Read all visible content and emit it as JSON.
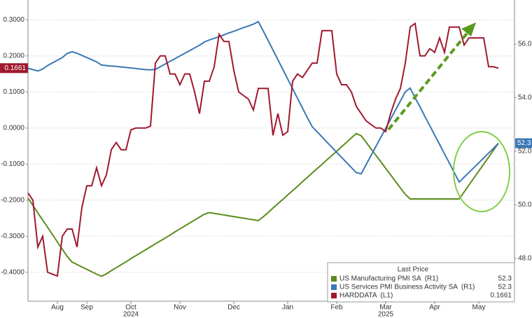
{
  "chart_data": {
    "type": "line",
    "categories": [
      null,
      null,
      null,
      null,
      null,
      null,
      "Aug",
      null,
      null,
      null,
      null,
      null,
      "Sep",
      null,
      null,
      null,
      null,
      null,
      null,
      null,
      null,
      "Oct",
      null,
      null,
      null,
      null,
      null,
      null,
      null,
      null,
      null,
      "Nov",
      null,
      null,
      null,
      null,
      null,
      null,
      null,
      null,
      null,
      null,
      "Dec",
      null,
      null,
      null,
      null,
      null,
      null,
      null,
      null,
      null,
      null,
      "Jan",
      null,
      null,
      null,
      null,
      null,
      null,
      null,
      null,
      null,
      "Feb",
      null,
      null,
      null,
      null,
      null,
      null,
      null,
      null,
      null,
      "Mar",
      null,
      null,
      null,
      null,
      null,
      null,
      null,
      null,
      null,
      "Apr",
      null,
      null,
      null,
      null,
      null,
      null,
      null,
      null,
      "May",
      null,
      null,
      null,
      null
    ],
    "year_labels": [
      "2024",
      "2025"
    ],
    "series": [
      {
        "name": "US Manufacturing PMI SA  (R1)",
        "color": "#5b8c1d",
        "axis": "y2",
        "values": [
          50.25,
          49.98,
          49.7,
          49.43,
          49.16,
          48.89,
          48.61,
          48.34,
          48.07,
          47.86,
          47.77,
          47.68,
          47.59,
          47.5,
          47.41,
          47.33,
          47.42,
          47.54,
          47.65,
          47.76,
          47.87,
          47.99,
          48.1,
          48.21,
          48.32,
          48.43,
          48.54,
          48.65,
          48.76,
          48.87,
          48.99,
          49.1,
          49.21,
          49.32,
          49.43,
          49.54,
          49.65,
          49.71,
          49.68,
          49.65,
          49.62,
          49.59,
          49.56,
          49.53,
          49.5,
          49.47,
          49.44,
          49.41,
          49.55,
          49.71,
          49.88,
          50.04,
          50.2,
          50.37,
          50.53,
          50.69,
          50.86,
          51.02,
          51.19,
          51.35,
          51.51,
          51.68,
          51.84,
          52.0,
          52.17,
          52.33,
          52.5,
          52.66,
          52.58,
          52.34,
          52.09,
          51.85,
          51.61,
          51.36,
          51.12,
          50.87,
          50.63,
          50.39,
          50.22,
          50.22,
          50.22,
          50.22,
          50.22,
          50.22,
          50.22,
          50.22,
          50.22,
          50.22,
          50.22,
          50.48,
          50.74,
          51.0,
          51.26,
          51.52,
          51.78,
          52.04,
          52.3
        ]
      },
      {
        "name": "US Services PMI Business Activity SA  (R1)",
        "color": "#3a78b5",
        "axis": "y2",
        "values": [
          55.1,
          55.05,
          55.0,
          55.07,
          55.2,
          55.3,
          55.4,
          55.5,
          55.65,
          55.72,
          55.66,
          55.58,
          55.5,
          55.42,
          55.34,
          55.22,
          55.2,
          55.18,
          55.17,
          55.15,
          55.13,
          55.11,
          55.09,
          55.07,
          55.05,
          55.04,
          55.06,
          55.16,
          55.26,
          55.36,
          55.46,
          55.56,
          55.66,
          55.76,
          55.86,
          55.96,
          56.08,
          56.16,
          56.22,
          56.28,
          56.35,
          56.42,
          56.48,
          56.55,
          56.62,
          56.68,
          56.75,
          56.84,
          56.5,
          56.14,
          55.78,
          55.42,
          55.06,
          54.7,
          54.34,
          53.98,
          53.62,
          53.26,
          52.92,
          52.73,
          52.54,
          52.34,
          52.15,
          51.96,
          51.77,
          51.58,
          51.39,
          51.2,
          51.16,
          51.5,
          51.84,
          52.18,
          52.52,
          52.86,
          53.2,
          53.54,
          53.88,
          54.22,
          54.36,
          54.0,
          53.66,
          53.3,
          52.96,
          52.6,
          52.26,
          51.9,
          51.56,
          51.2,
          50.85,
          51.03,
          51.21,
          51.39,
          51.57,
          51.75,
          51.93,
          52.11,
          52.3
        ]
      },
      {
        "name": "HARDDATA  (L1)",
        "color": "#a0192e",
        "values": [
          -0.18,
          -0.2,
          -0.33,
          -0.3,
          -0.4,
          -0.405,
          -0.41,
          -0.3,
          -0.28,
          -0.28,
          -0.33,
          -0.22,
          -0.16,
          -0.16,
          -0.11,
          -0.16,
          -0.13,
          -0.06,
          -0.04,
          -0.06,
          -0.06,
          -0.005,
          0.0,
          0.0,
          0.0,
          0.005,
          0.18,
          0.2,
          0.2,
          0.15,
          0.15,
          0.12,
          0.15,
          0.15,
          0.1,
          0.04,
          0.13,
          0.13,
          0.17,
          0.26,
          0.24,
          0.24,
          0.16,
          0.1,
          0.09,
          0.08,
          0.05,
          0.11,
          0.11,
          0.11,
          -0.02,
          0.04,
          -0.02,
          -0.01,
          0.13,
          0.15,
          0.14,
          0.16,
          0.18,
          0.18,
          0.27,
          0.27,
          0.27,
          0.15,
          0.12,
          0.12,
          0.1,
          0.06,
          0.04,
          0.02,
          0.01,
          0.0,
          0.0,
          -0.01,
          0.04,
          0.08,
          0.11,
          0.18,
          0.28,
          0.29,
          0.2,
          0.2,
          0.22,
          0.21,
          0.25,
          0.21,
          0.28,
          0.28,
          0.28,
          0.23,
          0.25,
          0.25,
          0.25,
          0.25,
          0.17,
          0.17,
          0.1661
        ]
      }
    ],
    "ylim": [
      -0.48,
      0.355
    ],
    "yticks": [
      {
        "value": 0.3,
        "label": "0.3000"
      },
      {
        "value": 0.2,
        "label": "0.2000"
      },
      {
        "value": 0.1,
        "label": "0.1000"
      },
      {
        "value": 0,
        "label": "0.0000"
      },
      {
        "value": -0.1,
        "label": "-0.1000"
      },
      {
        "value": -0.2,
        "label": "-0.2000"
      },
      {
        "value": -0.3,
        "label": "-0.3000"
      },
      {
        "value": -0.4,
        "label": "-0.4000"
      }
    ],
    "y2lim": [
      46.4,
      57.65
    ],
    "y2ticks": [
      {
        "value": 56,
        "label": "56.0"
      },
      {
        "value": 54,
        "label": "54.0"
      },
      {
        "value": 52,
        "label": "52.0"
      },
      {
        "value": 50,
        "label": "50.0"
      },
      {
        "value": 48,
        "label": "48.0"
      }
    ],
    "grid": true,
    "legend_title": "Last Price",
    "legend_position": "lower right"
  }
}
